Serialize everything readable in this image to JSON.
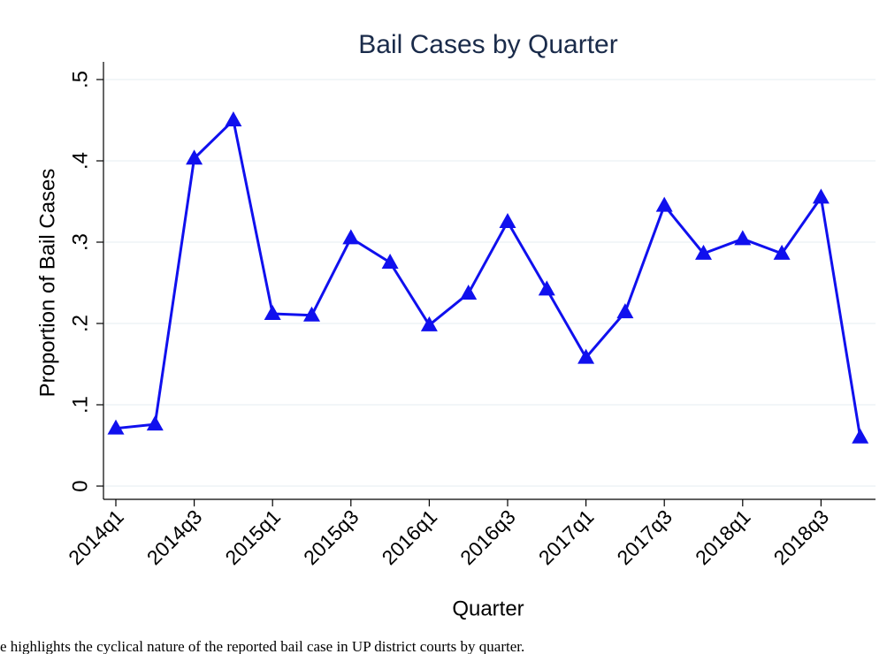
{
  "chart_data": {
    "type": "line",
    "title": "Bail Cases by Quarter",
    "x_label": "Quarter",
    "y_label": "Proportion of Bail Cases",
    "categories": [
      "2014q1",
      null,
      "2014q3",
      null,
      "2015q1",
      null,
      "2015q3",
      null,
      "2016q1",
      null,
      "2016q3",
      null,
      "2017q1",
      null,
      "2017q3",
      null,
      "2018q1",
      null,
      "2018q3",
      null
    ],
    "series": [
      {
        "name": "Proportion of Bail Cases",
        "color": "#1010ee",
        "values": [
          0.071,
          0.076,
          0.403,
          0.45,
          0.212,
          0.21,
          0.305,
          0.275,
          0.198,
          0.237,
          0.325,
          0.242,
          0.158,
          0.214,
          0.345,
          0.286,
          0.304,
          0.286,
          0.355,
          0.06
        ]
      }
    ],
    "ylim": [
      0,
      0.5
    ],
    "yticks": [
      0,
      {
        "value": 0.1,
        "label": ".1"
      },
      {
        "value": 0.2,
        "label": ".2"
      },
      {
        "value": 0.3,
        "label": ".3"
      },
      {
        "value": 0.4,
        "label": ".4"
      },
      {
        "value": 0.5,
        "label": ".5"
      }
    ],
    "grid": true,
    "caption": "e highlights the cyclical nature of the reported bail case in UP district courts by quarter."
  }
}
